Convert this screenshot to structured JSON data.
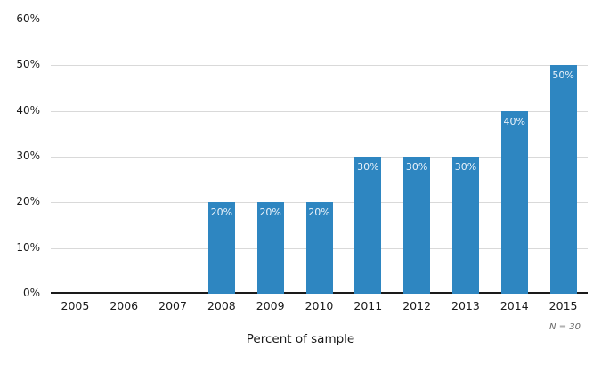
{
  "chart_data": {
    "type": "bar",
    "categories": [
      "2005",
      "2006",
      "2007",
      "2008",
      "2009",
      "2010",
      "2011",
      "2012",
      "2013",
      "2014",
      "2015"
    ],
    "values": [
      0,
      0,
      0,
      20,
      20,
      20,
      30,
      30,
      30,
      40,
      50
    ],
    "bar_labels": [
      "",
      "",
      "",
      "20%",
      "20%",
      "20%",
      "30%",
      "30%",
      "30%",
      "40%",
      "50%"
    ],
    "title": "",
    "xlabel": "Percent of sample",
    "ylabel": "",
    "ylim": [
      0,
      60
    ],
    "yticks": [
      0,
      10,
      20,
      30,
      40,
      50,
      60
    ],
    "ytick_labels": [
      "0%",
      "10%",
      "20%",
      "30%",
      "40%",
      "50%",
      "60%"
    ],
    "grid": "horizontal",
    "legend": "none",
    "annotation": "N = 30",
    "colors": {
      "bar": "#2e86c1",
      "bar_label": "#eaf2fa",
      "gridline": "#d9d9d9",
      "axis": "#1a1a1a",
      "text": "#1a1a1a",
      "note": "#666666",
      "background": "#ffffff"
    }
  }
}
